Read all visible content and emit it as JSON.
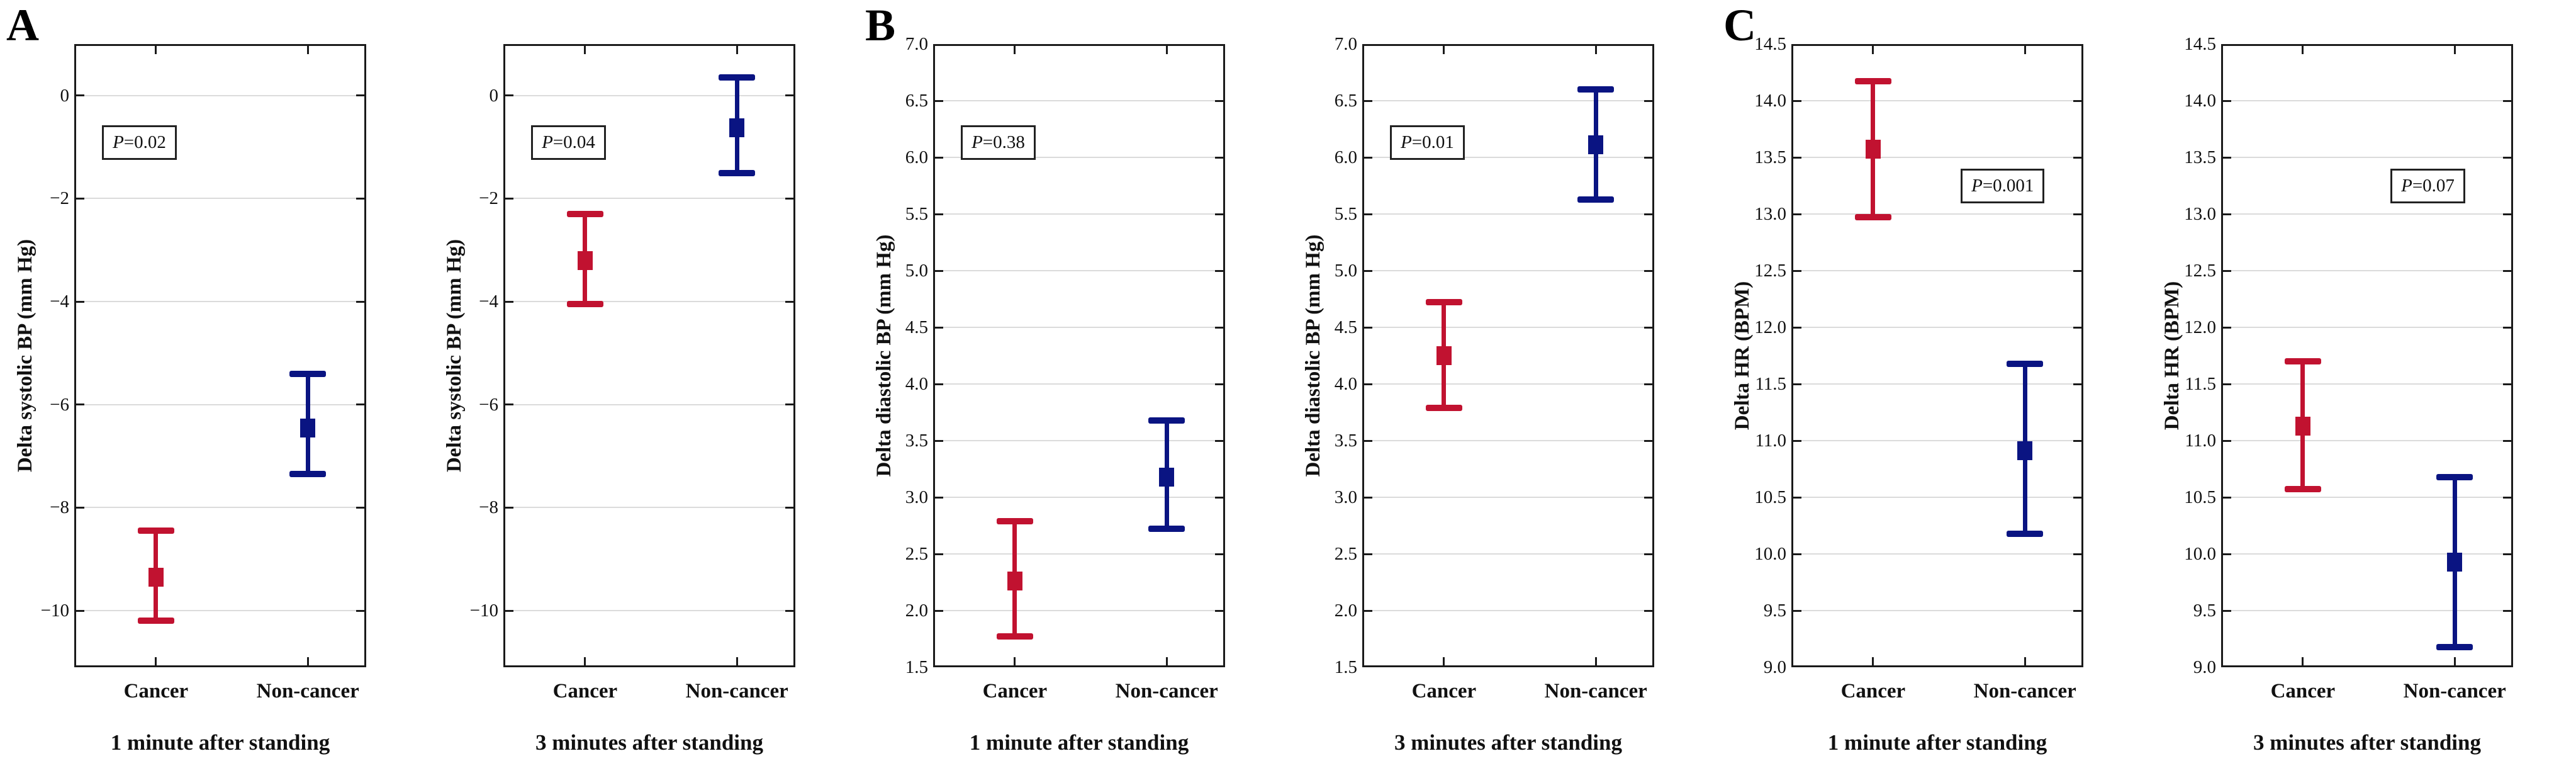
{
  "figure_title": "",
  "style": {
    "background": "#FFFFFF",
    "cancer_color": "#C11230",
    "noncancer_color": "#0A1482",
    "grid_color": "#DBDBDB",
    "axis_color": "#1A1A1A",
    "text_color": "#111111"
  },
  "chart_data": [
    {
      "type": "errorbar",
      "panel_letter": "A",
      "ylabel": "Delta systolic BP (mm Hg)",
      "xlabel": "1 minute after standing",
      "p_italic": "P",
      "p_text": "=0.02",
      "p_box_side": "left",
      "categories": [
        "Cancer",
        "Non-cancer"
      ],
      "ylim": [
        -11.1,
        1.0
      ],
      "yticks": [
        {
          "v": 0,
          "t": "0"
        },
        {
          "v": -2,
          "t": "−2"
        },
        {
          "v": -4,
          "t": "−4"
        },
        {
          "v": -6,
          "t": "−6"
        },
        {
          "v": -8,
          "t": "−8"
        },
        {
          "v": -10,
          "t": "−10"
        }
      ],
      "grid": true,
      "legend": "none",
      "series": [
        {
          "name": "Cancer",
          "color_key": "cancer_color",
          "mean": -9.35,
          "ci_low": -10.2,
          "ci_high": -8.45
        },
        {
          "name": "Non-cancer",
          "color_key": "noncancer_color",
          "mean": -6.45,
          "ci_low": -7.35,
          "ci_high": -5.4
        }
      ]
    },
    {
      "type": "errorbar",
      "panel_letter": "",
      "ylabel": "Delta systolic BP (mm Hg)",
      "xlabel": "3 minutes after standing",
      "p_italic": "P",
      "p_text": "=0.04",
      "p_box_side": "left",
      "categories": [
        "Cancer",
        "Non-cancer"
      ],
      "ylim": [
        -11.1,
        1.0
      ],
      "yticks": [
        {
          "v": 0,
          "t": "0"
        },
        {
          "v": -2,
          "t": "−2"
        },
        {
          "v": -4,
          "t": "−4"
        },
        {
          "v": -6,
          "t": "−6"
        },
        {
          "v": -8,
          "t": "−8"
        },
        {
          "v": -10,
          "t": "−10"
        }
      ],
      "grid": true,
      "legend": "none",
      "series": [
        {
          "name": "Cancer",
          "color_key": "cancer_color",
          "mean": -3.2,
          "ci_low": -4.05,
          "ci_high": -2.3
        },
        {
          "name": "Non-cancer",
          "color_key": "noncancer_color",
          "mean": -0.62,
          "ci_low": -1.5,
          "ci_high": 0.35
        }
      ]
    },
    {
      "type": "errorbar",
      "panel_letter": "B",
      "ylabel": "Delta diastolic BP (mm Hg)",
      "xlabel": "1 minute after standing",
      "p_italic": "P",
      "p_text": "=0.38",
      "p_box_side": "left",
      "categories": [
        "Cancer",
        "Non-cancer"
      ],
      "ylim": [
        1.5,
        7.0
      ],
      "yticks": [
        {
          "v": 7.0,
          "t": "7.0"
        },
        {
          "v": 6.5,
          "t": "6.5"
        },
        {
          "v": 6.0,
          "t": "6.0"
        },
        {
          "v": 5.5,
          "t": "5.5"
        },
        {
          "v": 5.0,
          "t": "5.0"
        },
        {
          "v": 4.5,
          "t": "4.5"
        },
        {
          "v": 4.0,
          "t": "4.0"
        },
        {
          "v": 3.5,
          "t": "3.5"
        },
        {
          "v": 3.0,
          "t": "3.0"
        },
        {
          "v": 2.5,
          "t": "2.5"
        },
        {
          "v": 2.0,
          "t": "2.0"
        },
        {
          "v": 1.5,
          "t": "1.5"
        }
      ],
      "grid": true,
      "legend": "none",
      "series": [
        {
          "name": "Cancer",
          "color_key": "cancer_color",
          "mean": 2.26,
          "ci_low": 1.77,
          "ci_high": 2.79
        },
        {
          "name": "Non-cancer",
          "color_key": "noncancer_color",
          "mean": 3.18,
          "ci_low": 2.72,
          "ci_high": 3.68
        }
      ]
    },
    {
      "type": "errorbar",
      "panel_letter": "",
      "ylabel": "Delta diastolic BP (mm Hg)",
      "xlabel": "3 minutes after standing",
      "p_italic": "P",
      "p_text": "=0.01",
      "p_box_side": "left",
      "categories": [
        "Cancer",
        "Non-cancer"
      ],
      "ylim": [
        1.5,
        7.0
      ],
      "yticks": [
        {
          "v": 7.0,
          "t": "7.0"
        },
        {
          "v": 6.5,
          "t": "6.5"
        },
        {
          "v": 6.0,
          "t": "6.0"
        },
        {
          "v": 5.5,
          "t": "5.5"
        },
        {
          "v": 5.0,
          "t": "5.0"
        },
        {
          "v": 4.5,
          "t": "4.5"
        },
        {
          "v": 4.0,
          "t": "4.0"
        },
        {
          "v": 3.5,
          "t": "3.5"
        },
        {
          "v": 3.0,
          "t": "3.0"
        },
        {
          "v": 2.5,
          "t": "2.5"
        },
        {
          "v": 2.0,
          "t": "2.0"
        },
        {
          "v": 1.5,
          "t": "1.5"
        }
      ],
      "grid": true,
      "legend": "none",
      "series": [
        {
          "name": "Cancer",
          "color_key": "cancer_color",
          "mean": 4.25,
          "ci_low": 3.79,
          "ci_high": 4.72
        },
        {
          "name": "Non-cancer",
          "color_key": "noncancer_color",
          "mean": 6.11,
          "ci_low": 5.63,
          "ci_high": 6.6
        }
      ]
    },
    {
      "type": "errorbar",
      "panel_letter": "C",
      "ylabel": "Delta HR (BPM)",
      "xlabel": "1 minute after standing",
      "p_italic": "P",
      "p_text": "=0.001",
      "p_box_side": "right",
      "categories": [
        "Cancer",
        "Non-cancer"
      ],
      "ylim": [
        9.0,
        14.5
      ],
      "yticks": [
        {
          "v": 14.5,
          "t": "14.5"
        },
        {
          "v": 14.0,
          "t": "14.0"
        },
        {
          "v": 13.5,
          "t": "13.5"
        },
        {
          "v": 13.0,
          "t": "13.0"
        },
        {
          "v": 12.5,
          "t": "12.5"
        },
        {
          "v": 12.0,
          "t": "12.0"
        },
        {
          "v": 11.5,
          "t": "11.5"
        },
        {
          "v": 11.0,
          "t": "11.0"
        },
        {
          "v": 10.5,
          "t": "10.5"
        },
        {
          "v": 10.0,
          "t": "10.0"
        },
        {
          "v": 9.5,
          "t": "9.5"
        },
        {
          "v": 9.0,
          "t": "9.0"
        }
      ],
      "grid": true,
      "legend": "none",
      "series": [
        {
          "name": "Cancer",
          "color_key": "cancer_color",
          "mean": 13.57,
          "ci_low": 12.97,
          "ci_high": 14.17
        },
        {
          "name": "Non-cancer",
          "color_key": "noncancer_color",
          "mean": 10.91,
          "ci_low": 10.18,
          "ci_high": 11.68
        }
      ]
    },
    {
      "type": "errorbar",
      "panel_letter": "",
      "ylabel": "Delta HR (BPM)",
      "xlabel": "3 minutes after standing",
      "p_italic": "P",
      "p_text": "=0.07",
      "p_box_side": "right",
      "categories": [
        "Cancer",
        "Non-cancer"
      ],
      "ylim": [
        9.0,
        14.5
      ],
      "yticks": [
        {
          "v": 14.5,
          "t": "14.5"
        },
        {
          "v": 14.0,
          "t": "14.0"
        },
        {
          "v": 13.5,
          "t": "13.5"
        },
        {
          "v": 13.0,
          "t": "13.0"
        },
        {
          "v": 12.5,
          "t": "12.5"
        },
        {
          "v": 12.0,
          "t": "12.0"
        },
        {
          "v": 11.5,
          "t": "11.5"
        },
        {
          "v": 11.0,
          "t": "11.0"
        },
        {
          "v": 10.5,
          "t": "10.5"
        },
        {
          "v": 10.0,
          "t": "10.0"
        },
        {
          "v": 9.5,
          "t": "9.5"
        },
        {
          "v": 9.0,
          "t": "9.0"
        }
      ],
      "grid": true,
      "legend": "none",
      "series": [
        {
          "name": "Cancer",
          "color_key": "cancer_color",
          "mean": 11.13,
          "ci_low": 10.57,
          "ci_high": 11.7
        },
        {
          "name": "Non-cancer",
          "color_key": "noncancer_color",
          "mean": 9.93,
          "ci_low": 9.18,
          "ci_high": 10.68
        }
      ]
    }
  ]
}
